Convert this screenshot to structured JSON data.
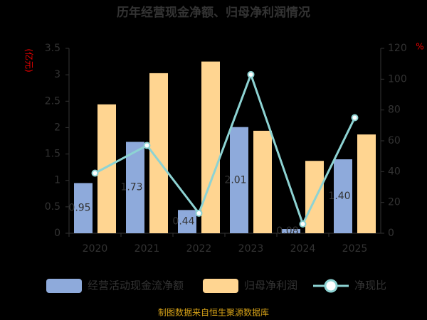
{
  "chart_data": {
    "type": "bar-line",
    "title": "历年经营现金净额、归母净利润情况",
    "y_label": "(亿元)",
    "y2_label": "%",
    "categories": [
      "2020",
      "2021",
      "2022",
      "2023",
      "2024",
      "2025"
    ],
    "series": [
      {
        "name": "经营活动现金流净额",
        "type": "bar",
        "color": "#8eaadb",
        "values": [
          0.95,
          1.73,
          0.44,
          2.01,
          0.08,
          1.4
        ],
        "value_labels": [
          "0.95",
          "1.73",
          "0.44",
          "2.01",
          "0.08",
          "1.40"
        ]
      },
      {
        "name": "归母净利润",
        "type": "bar",
        "color": "#ffd591",
        "values": [
          2.44,
          3.03,
          3.25,
          1.94,
          1.37,
          1.87
        ]
      },
      {
        "name": "净现比",
        "type": "line",
        "axis": "y2",
        "color": "#8dd3d3",
        "values": [
          39,
          57,
          13,
          103,
          6,
          75
        ]
      }
    ],
    "ylim": [
      0,
      3.5
    ],
    "yticks": [
      0,
      0.5,
      1,
      1.5,
      2,
      2.5,
      3,
      3.5
    ],
    "y2lim": [
      0,
      120
    ],
    "y2ticks": [
      0,
      20,
      40,
      60,
      80,
      100,
      120
    ],
    "footer": "制图数据来自恒生聚源数据库"
  }
}
